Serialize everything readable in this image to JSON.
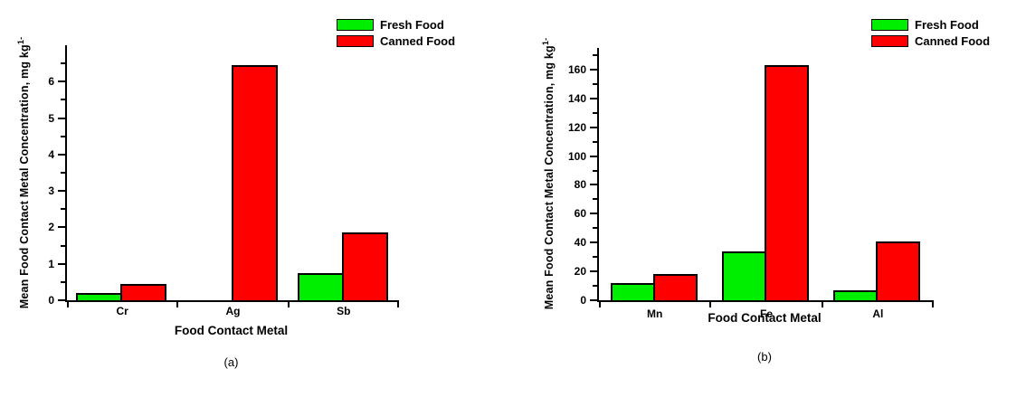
{
  "figure": {
    "background": "#ffffff",
    "axis_color": "#000000",
    "text_color": "#000000"
  },
  "legend": {
    "position": "top-right",
    "items": [
      {
        "label": "Fresh Food",
        "color": "#00ee00"
      },
      {
        "label": "Canned Food",
        "color": "#ff0000"
      }
    ]
  },
  "chart_data": [
    {
      "type": "bar",
      "caption": "(a)",
      "xlabel": "Food Contact Metal",
      "ylabel": "Mean Food Contact Metal Concentration, mg kg",
      "ylabel_superscript": "1-",
      "categories": [
        "Cr",
        "Ag",
        "Sb"
      ],
      "series": [
        {
          "name": "Fresh Food",
          "color": "#00ee00",
          "values": [
            0.2,
            0,
            0.75
          ]
        },
        {
          "name": "Canned Food",
          "color": "#ff0000",
          "values": [
            0.45,
            6.45,
            1.85
          ]
        }
      ],
      "ylim": [
        0,
        7
      ],
      "y_major_step": 1,
      "y_minor_step": 0.5,
      "y_tick_labels": [
        "0",
        "1",
        "2",
        "3",
        "4",
        "5",
        "6"
      ],
      "grid": false,
      "legend_position": "top-right"
    },
    {
      "type": "bar",
      "caption": "(b)",
      "xlabel": "Food Contact Metal",
      "ylabel": "Mean Food Contact Metal Concentration, mg kg",
      "ylabel_superscript": "1-",
      "categories": [
        "Mn",
        "Fe",
        "Al"
      ],
      "series": [
        {
          "name": "Fresh Food",
          "color": "#00ee00",
          "values": [
            12,
            34,
            7
          ]
        },
        {
          "name": "Canned Food",
          "color": "#ff0000",
          "values": [
            18,
            163,
            41
          ]
        }
      ],
      "ylim": [
        0,
        175
      ],
      "y_major_step": 20,
      "y_minor_step": 10,
      "y_tick_labels": [
        "0",
        "20",
        "40",
        "60",
        "80",
        "100",
        "120",
        "140",
        "160"
      ],
      "grid": false,
      "legend_position": "top-right"
    }
  ]
}
